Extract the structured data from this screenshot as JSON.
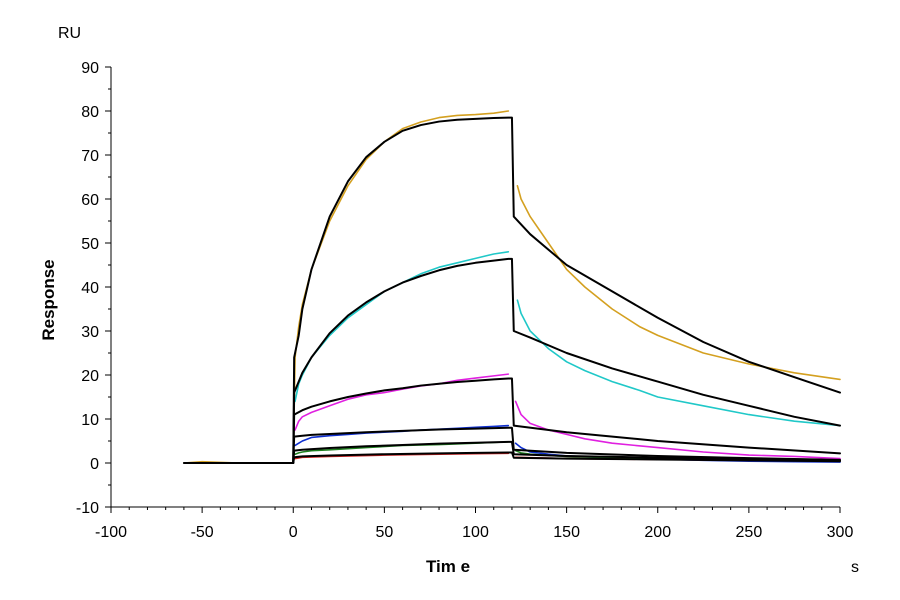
{
  "chart_data": {
    "type": "line",
    "title": "",
    "xlabel": "Tim e",
    "ylabel": "Response",
    "x_unit": "s",
    "y_unit": "RU",
    "xlim": [
      -100,
      300
    ],
    "ylim": [
      -10,
      90
    ],
    "x_ticks": [
      -100,
      -50,
      0,
      50,
      100,
      150,
      200,
      250,
      300
    ],
    "y_ticks": [
      -10,
      0,
      10,
      20,
      30,
      40,
      50,
      60,
      70,
      80,
      90
    ],
    "grid": false,
    "legend": "none",
    "association_end": 120,
    "series": [
      {
        "color": "#d4a020",
        "x": [
          -60,
          -50,
          -30,
          0,
          1,
          3,
          5,
          10,
          20,
          30,
          40,
          50,
          60,
          70,
          80,
          90,
          100,
          110,
          118,
          null,
          123,
          125,
          130,
          140,
          150,
          160,
          175,
          190,
          200,
          225,
          250,
          275,
          300
        ],
        "y": [
          0,
          0.3,
          0,
          0,
          24,
          31,
          36,
          44,
          55,
          63,
          69,
          73,
          76,
          77.5,
          78.5,
          79,
          79.2,
          79.5,
          80,
          null,
          63,
          60,
          56,
          50,
          44,
          40,
          35,
          31,
          29,
          25,
          22.5,
          20.5,
          19
        ]
      },
      {
        "color": "#20c8c8",
        "x": [
          1,
          3,
          5,
          10,
          20,
          30,
          40,
          50,
          60,
          70,
          80,
          90,
          100,
          110,
          118,
          null,
          123,
          125,
          130,
          140,
          150,
          160,
          175,
          190,
          200,
          225,
          250,
          275,
          300
        ],
        "y": [
          14,
          18,
          20,
          24,
          29,
          33,
          36,
          39,
          41,
          43,
          44.5,
          45.5,
          46.5,
          47.5,
          48,
          null,
          37,
          34,
          30,
          26,
          23,
          21,
          18.5,
          16.5,
          15,
          13,
          11,
          9.5,
          8.5
        ]
      },
      {
        "color": "#e020e0",
        "x": [
          1,
          3,
          5,
          10,
          20,
          30,
          40,
          50,
          60,
          70,
          80,
          90,
          100,
          110,
          118,
          null,
          122,
          125,
          130,
          140,
          150,
          160,
          175,
          200,
          225,
          250,
          275,
          300
        ],
        "y": [
          7.5,
          9.5,
          10.5,
          11.5,
          13,
          14.5,
          15.5,
          16,
          16.8,
          17.5,
          18,
          18.8,
          19.3,
          19.8,
          20.2,
          null,
          14,
          11,
          9,
          7.5,
          6.5,
          5.5,
          4.5,
          3.5,
          2.5,
          1.8,
          1.5,
          1
        ]
      },
      {
        "color": "#1030d0",
        "x": [
          1,
          3,
          5,
          10,
          20,
          30,
          40,
          50,
          60,
          70,
          80,
          90,
          100,
          110,
          118,
          null,
          122,
          125,
          130,
          140,
          150,
          175,
          200,
          225,
          250,
          275,
          300
        ],
        "y": [
          4,
          4.5,
          5,
          5.8,
          6.2,
          6.5,
          6.8,
          7,
          7.2,
          7.5,
          7.7,
          7.9,
          8.1,
          8.3,
          8.5,
          null,
          4.5,
          3.5,
          2.5,
          2,
          1.6,
          1.2,
          0.9,
          0.6,
          0.4,
          0.3,
          0.2
        ]
      },
      {
        "color": "#208020",
        "x": [
          1,
          3,
          5,
          10,
          20,
          40,
          60,
          80,
          100,
          118,
          null,
          122,
          125,
          130,
          150,
          175,
          200,
          250,
          300
        ],
        "y": [
          2,
          2.3,
          2.5,
          2.8,
          3,
          3.5,
          4,
          4.2,
          4.5,
          4.8,
          null,
          2.8,
          2.3,
          2,
          1.5,
          1.2,
          1,
          0.8,
          0.6
        ]
      },
      {
        "color": "#d02020",
        "x": [
          1,
          5,
          20,
          50,
          80,
          100,
          118,
          null,
          122,
          150,
          200,
          250,
          300
        ],
        "y": [
          1,
          1.3,
          1.5,
          1.8,
          2,
          2.1,
          2.2,
          null,
          1.3,
          1,
          0.8,
          0.6,
          0.5
        ]
      },
      {
        "color": "#000000",
        "x": [
          -60,
          -30,
          0,
          0.5,
          3,
          5,
          10,
          20,
          30,
          40,
          50,
          60,
          70,
          80,
          90,
          100,
          110,
          118,
          120,
          121,
          130,
          140,
          150,
          175,
          200,
          225,
          250,
          275,
          300
        ],
        "y": [
          0,
          0,
          0,
          24,
          29,
          35,
          44,
          56,
          64,
          69.5,
          73,
          75.5,
          76.8,
          77.6,
          78,
          78.2,
          78.4,
          78.5,
          78.5,
          56,
          52,
          48.5,
          45,
          39,
          33,
          27.5,
          23,
          19.5,
          16
        ]
      },
      {
        "color": "#000000",
        "x": [
          0,
          0.5,
          3,
          5,
          10,
          20,
          30,
          40,
          50,
          60,
          70,
          80,
          90,
          100,
          110,
          118,
          120,
          121,
          130,
          150,
          175,
          200,
          225,
          250,
          275,
          300
        ],
        "y": [
          0,
          16,
          18.5,
          20.5,
          24,
          29.5,
          33.5,
          36.5,
          39,
          41,
          42.5,
          43.8,
          44.8,
          45.5,
          46,
          46.4,
          46.4,
          30,
          28.5,
          25,
          21.5,
          18.5,
          15.5,
          13,
          10.5,
          8.5
        ]
      },
      {
        "color": "#000000",
        "x": [
          0,
          0.5,
          5,
          10,
          20,
          30,
          40,
          50,
          60,
          70,
          80,
          90,
          100,
          110,
          118,
          120,
          121,
          150,
          200,
          250,
          300
        ],
        "y": [
          0,
          11,
          12,
          12.8,
          14,
          15,
          15.8,
          16.5,
          17,
          17.6,
          18,
          18.4,
          18.7,
          19,
          19.2,
          19.2,
          8.5,
          7,
          5,
          3.5,
          2.2
        ]
      },
      {
        "color": "#000000",
        "x": [
          0,
          0.5,
          5,
          10,
          20,
          40,
          60,
          80,
          100,
          118,
          120,
          121,
          150,
          200,
          250,
          300
        ],
        "y": [
          0,
          6,
          6.2,
          6.4,
          6.6,
          7,
          7.3,
          7.6,
          7.8,
          8,
          8,
          3,
          2.3,
          1.6,
          1.1,
          0.7
        ]
      },
      {
        "color": "#000000",
        "x": [
          0,
          0.5,
          5,
          20,
          40,
          60,
          80,
          100,
          118,
          120,
          121,
          150,
          200,
          250,
          300
        ],
        "y": [
          0,
          2.8,
          3,
          3.4,
          3.8,
          4.1,
          4.4,
          4.6,
          4.8,
          4.8,
          2,
          1.6,
          1.2,
          0.9,
          0.6
        ]
      },
      {
        "color": "#000000",
        "x": [
          0,
          0.5,
          5,
          20,
          50,
          80,
          100,
          118,
          120,
          121,
          150,
          200,
          250,
          300
        ],
        "y": [
          0,
          1.3,
          1.5,
          1.7,
          2,
          2.2,
          2.3,
          2.4,
          2.4,
          1.2,
          1,
          0.8,
          0.6,
          0.4
        ]
      }
    ]
  }
}
